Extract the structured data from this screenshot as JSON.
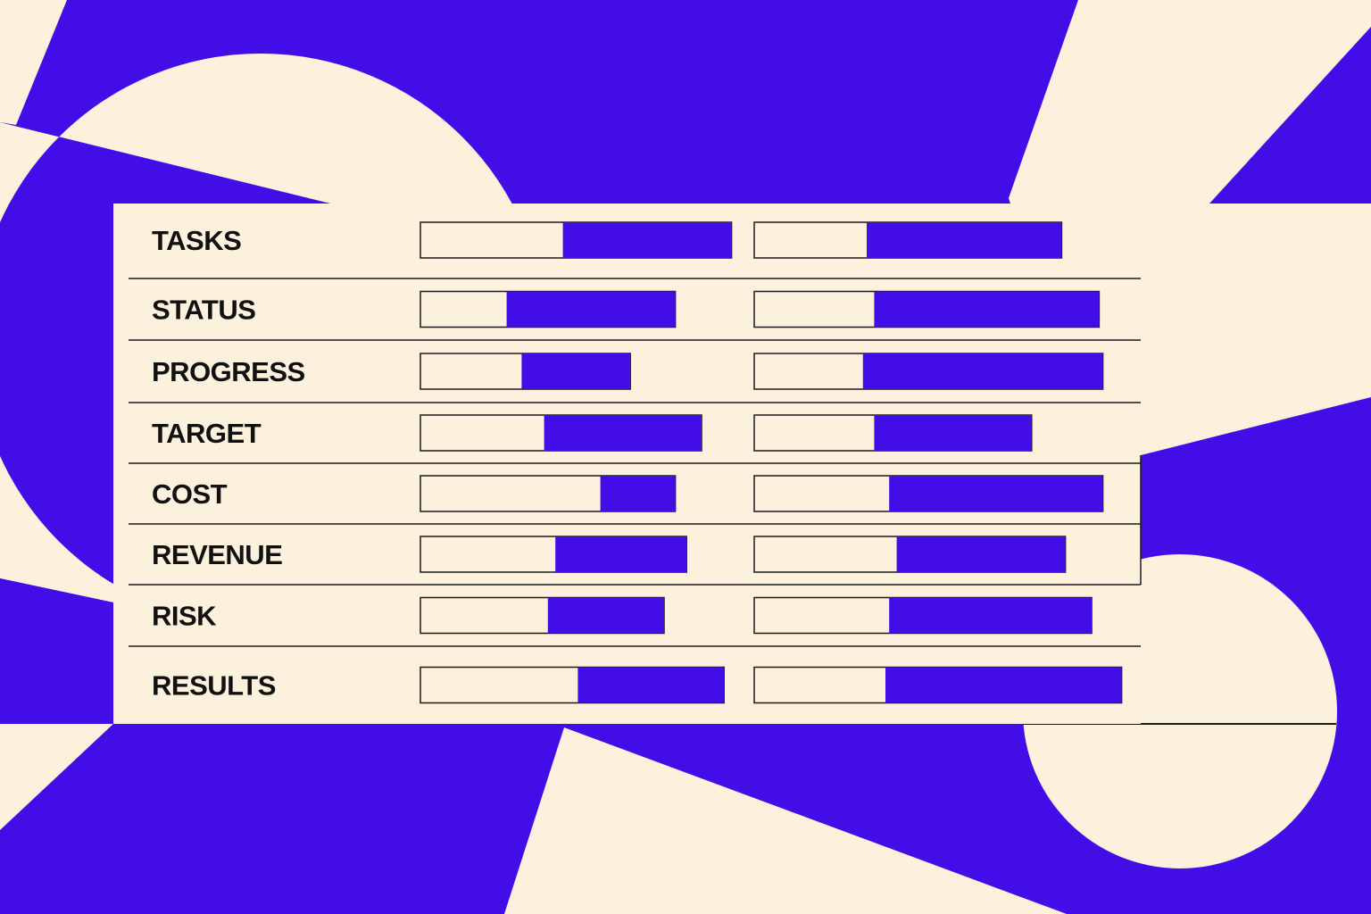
{
  "colors": {
    "cream": "#FCF1DC",
    "blue": "#430DE8",
    "ink": "#1a1a1a"
  },
  "chart_data": {
    "type": "bar",
    "orientation": "horizontal",
    "stacked": true,
    "note_units": "percent of track length",
    "categories": [
      "TASKS",
      "STATUS",
      "PROGRESS",
      "TARGET",
      "COST",
      "REVENUE",
      "RISK",
      "RESULTS"
    ],
    "columns": [
      {
        "empty": [
          38,
          23,
          27,
          33,
          48,
          36,
          34,
          42
        ],
        "filled": [
          45,
          45,
          29,
          42,
          20,
          35,
          31,
          39
        ]
      },
      {
        "empty": [
          30,
          32,
          29,
          32,
          36,
          38,
          36,
          35
        ],
        "filled": [
          52,
          60,
          64,
          42,
          57,
          45,
          54,
          63
        ]
      }
    ],
    "axes": "none",
    "grid": false,
    "legend": "none"
  }
}
